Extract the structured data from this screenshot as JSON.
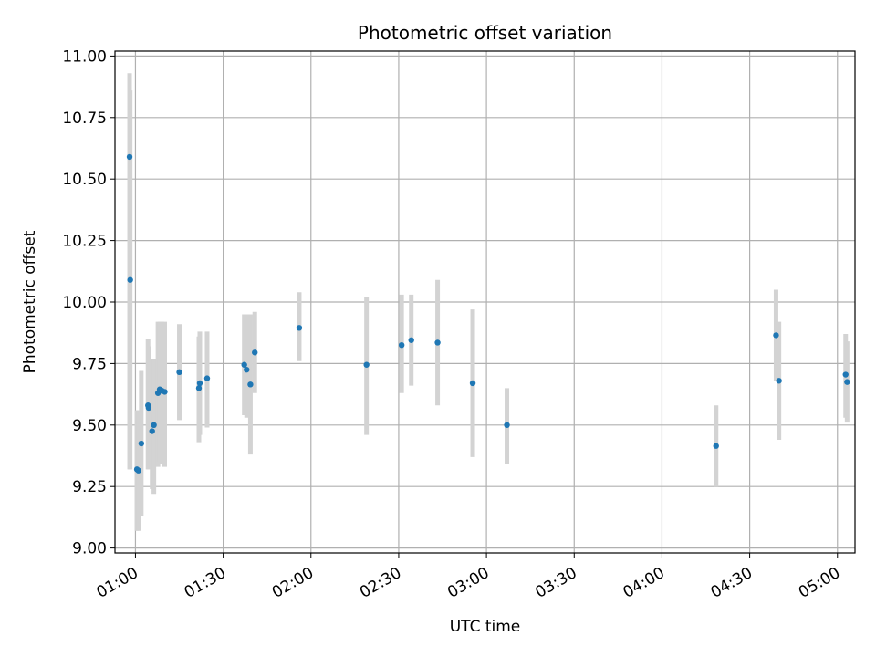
{
  "chart_data": {
    "type": "scatter",
    "title": "Photometric offset variation",
    "xlabel": "UTC time",
    "ylabel": "Photometric offset",
    "x_units": "minutes after 00:00 UTC",
    "xlim": [
      53,
      306
    ],
    "ylim": [
      8.98,
      11.02
    ],
    "x_ticks": [
      60,
      90,
      120,
      150,
      180,
      210,
      240,
      270,
      300
    ],
    "x_tick_labels": [
      "01:00",
      "01:30",
      "02:00",
      "02:30",
      "03:00",
      "03:30",
      "04:00",
      "04:30",
      "05:00"
    ],
    "y_ticks": [
      9.0,
      9.25,
      9.5,
      9.75,
      10.0,
      10.25,
      10.5,
      10.75,
      11.0
    ],
    "y_tick_labels": [
      "9.00",
      "9.25",
      "9.50",
      "9.75",
      "10.00",
      "10.25",
      "10.50",
      "10.75",
      "11.00"
    ],
    "grid": true,
    "colors": {
      "point": "#1f77b4",
      "errorbar": "#d3d3d3",
      "grid": "#b0b0b0"
    },
    "points": [
      {
        "x": 58.0,
        "y": 10.59,
        "low": 9.32,
        "high": 10.93
      },
      {
        "x": 58.2,
        "y": 10.09,
        "low": 9.32,
        "high": 10.86
      },
      {
        "x": 60.5,
        "y": 9.32,
        "low": 9.07,
        "high": 9.56
      },
      {
        "x": 61.0,
        "y": 9.315,
        "low": 9.07,
        "high": 9.56
      },
      {
        "x": 62.0,
        "y": 9.425,
        "low": 9.13,
        "high": 9.72
      },
      {
        "x": 64.3,
        "y": 9.58,
        "low": 9.32,
        "high": 9.85
      },
      {
        "x": 64.5,
        "y": 9.57,
        "low": 9.32,
        "high": 9.82
      },
      {
        "x": 65.7,
        "y": 9.475,
        "low": 9.24,
        "high": 9.77
      },
      {
        "x": 66.3,
        "y": 9.5,
        "low": 9.22,
        "high": 9.77
      },
      {
        "x": 67.7,
        "y": 9.63,
        "low": 9.33,
        "high": 9.92
      },
      {
        "x": 68.3,
        "y": 9.645,
        "low": 9.35,
        "high": 9.92
      },
      {
        "x": 69.0,
        "y": 9.64,
        "low": 9.34,
        "high": 9.92
      },
      {
        "x": 70.0,
        "y": 9.635,
        "low": 9.33,
        "high": 9.92
      },
      {
        "x": 75.0,
        "y": 9.715,
        "low": 9.52,
        "high": 9.91
      },
      {
        "x": 81.7,
        "y": 9.65,
        "low": 9.43,
        "high": 9.86
      },
      {
        "x": 82.0,
        "y": 9.67,
        "low": 9.46,
        "high": 9.88
      },
      {
        "x": 84.5,
        "y": 9.69,
        "low": 9.49,
        "high": 9.88
      },
      {
        "x": 97.2,
        "y": 9.745,
        "low": 9.54,
        "high": 9.95
      },
      {
        "x": 98.0,
        "y": 9.725,
        "low": 9.53,
        "high": 9.95
      },
      {
        "x": 99.3,
        "y": 9.665,
        "low": 9.38,
        "high": 9.95
      },
      {
        "x": 100.8,
        "y": 9.795,
        "low": 9.63,
        "high": 9.96
      },
      {
        "x": 116.0,
        "y": 9.895,
        "low": 9.76,
        "high": 10.04
      },
      {
        "x": 139.0,
        "y": 9.745,
        "low": 9.46,
        "high": 10.02
      },
      {
        "x": 151.0,
        "y": 9.825,
        "low": 9.63,
        "high": 10.03
      },
      {
        "x": 154.3,
        "y": 9.845,
        "low": 9.66,
        "high": 10.03
      },
      {
        "x": 163.3,
        "y": 9.835,
        "low": 9.58,
        "high": 10.09
      },
      {
        "x": 175.3,
        "y": 9.67,
        "low": 9.37,
        "high": 9.97
      },
      {
        "x": 187.0,
        "y": 9.5,
        "low": 9.34,
        "high": 9.65
      },
      {
        "x": 258.5,
        "y": 9.415,
        "low": 9.25,
        "high": 9.58
      },
      {
        "x": 279.0,
        "y": 9.865,
        "low": 9.68,
        "high": 10.05
      },
      {
        "x": 280.0,
        "y": 9.68,
        "low": 9.44,
        "high": 9.92
      },
      {
        "x": 302.8,
        "y": 9.705,
        "low": 9.53,
        "high": 9.87
      },
      {
        "x": 303.3,
        "y": 9.675,
        "low": 9.51,
        "high": 9.84
      }
    ]
  }
}
